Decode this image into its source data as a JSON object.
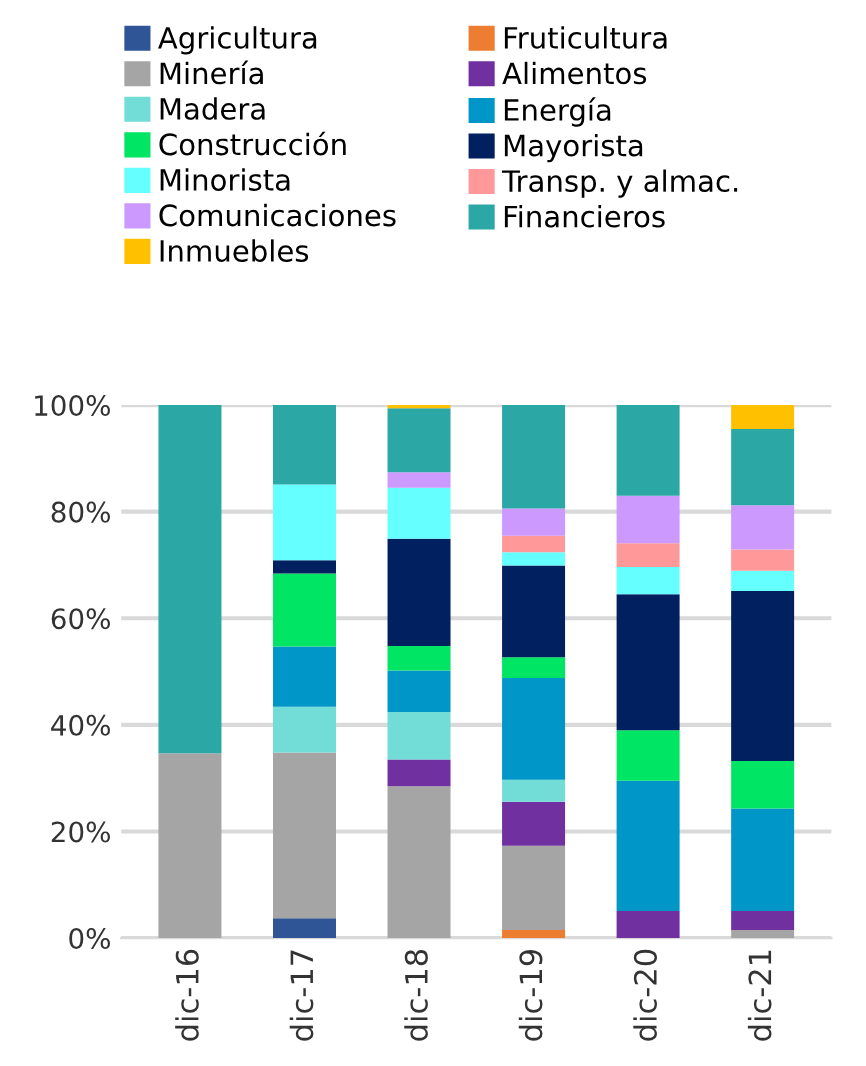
{
  "chart_data": {
    "type": "bar",
    "stacked": true,
    "categories": [
      "dic-16",
      "dic-17",
      "dic-18",
      "dic-19",
      "dic-20",
      "dic-21"
    ],
    "series": [
      {
        "name": "Agricultura",
        "color": "#2f5597",
        "values": [
          0,
          3.7,
          0,
          0,
          0,
          0
        ]
      },
      {
        "name": "Fruticultura",
        "color": "#ed7d31",
        "values": [
          0,
          0,
          0,
          1.5,
          0,
          0
        ]
      },
      {
        "name": "Minería",
        "color": "#a5a5a5",
        "values": [
          34.7,
          31.1,
          28.5,
          15.8,
          0,
          1.5
        ]
      },
      {
        "name": "Alimentos",
        "color": "#7030a0",
        "values": [
          0,
          0,
          5.0,
          8.3,
          5.1,
          3.6
        ]
      },
      {
        "name": "Madera",
        "color": "#72ddd7",
        "values": [
          0,
          8.6,
          8.9,
          4.1,
          0,
          0
        ]
      },
      {
        "name": "Energía",
        "color": "#0097c8",
        "values": [
          0,
          11.3,
          7.8,
          19.1,
          24.4,
          19.2
        ]
      },
      {
        "name": "Construcción",
        "color": "#00e564",
        "values": [
          0,
          13.7,
          4.6,
          3.9,
          9.5,
          8.9
        ]
      },
      {
        "name": "Mayorista",
        "color": "#002060",
        "values": [
          0,
          2.5,
          20.1,
          17.2,
          25.5,
          31.9
        ]
      },
      {
        "name": "Minorista",
        "color": "#66ffff",
        "values": [
          0,
          14.2,
          9.6,
          2.5,
          5.1,
          3.8
        ]
      },
      {
        "name": "Transp. y almac.",
        "color": "#ff9999",
        "values": [
          0,
          0,
          0,
          3.1,
          4.5,
          4.0
        ]
      },
      {
        "name": "Comunicaciones",
        "color": "#cc99ff",
        "values": [
          0,
          0,
          2.9,
          5.1,
          8.9,
          8.3
        ]
      },
      {
        "name": "Financieros",
        "color": "#2ba8a5",
        "values": [
          65.3,
          14.9,
          12.0,
          19.4,
          17.0,
          14.3
        ]
      },
      {
        "name": "Inmuebles",
        "color": "#ffc000",
        "values": [
          0,
          0,
          0.6,
          0,
          0,
          4.5
        ]
      }
    ],
    "ylim": [
      0,
      100
    ],
    "yticks": [
      {
        "value": 0,
        "label": "0%"
      },
      {
        "value": 20,
        "label": "20%"
      },
      {
        "value": 40,
        "label": "40%"
      },
      {
        "value": 60,
        "label": "60%"
      },
      {
        "value": 80,
        "label": "80%"
      },
      {
        "value": 100,
        "label": "100%"
      }
    ],
    "grid": "y",
    "legend": "top"
  }
}
